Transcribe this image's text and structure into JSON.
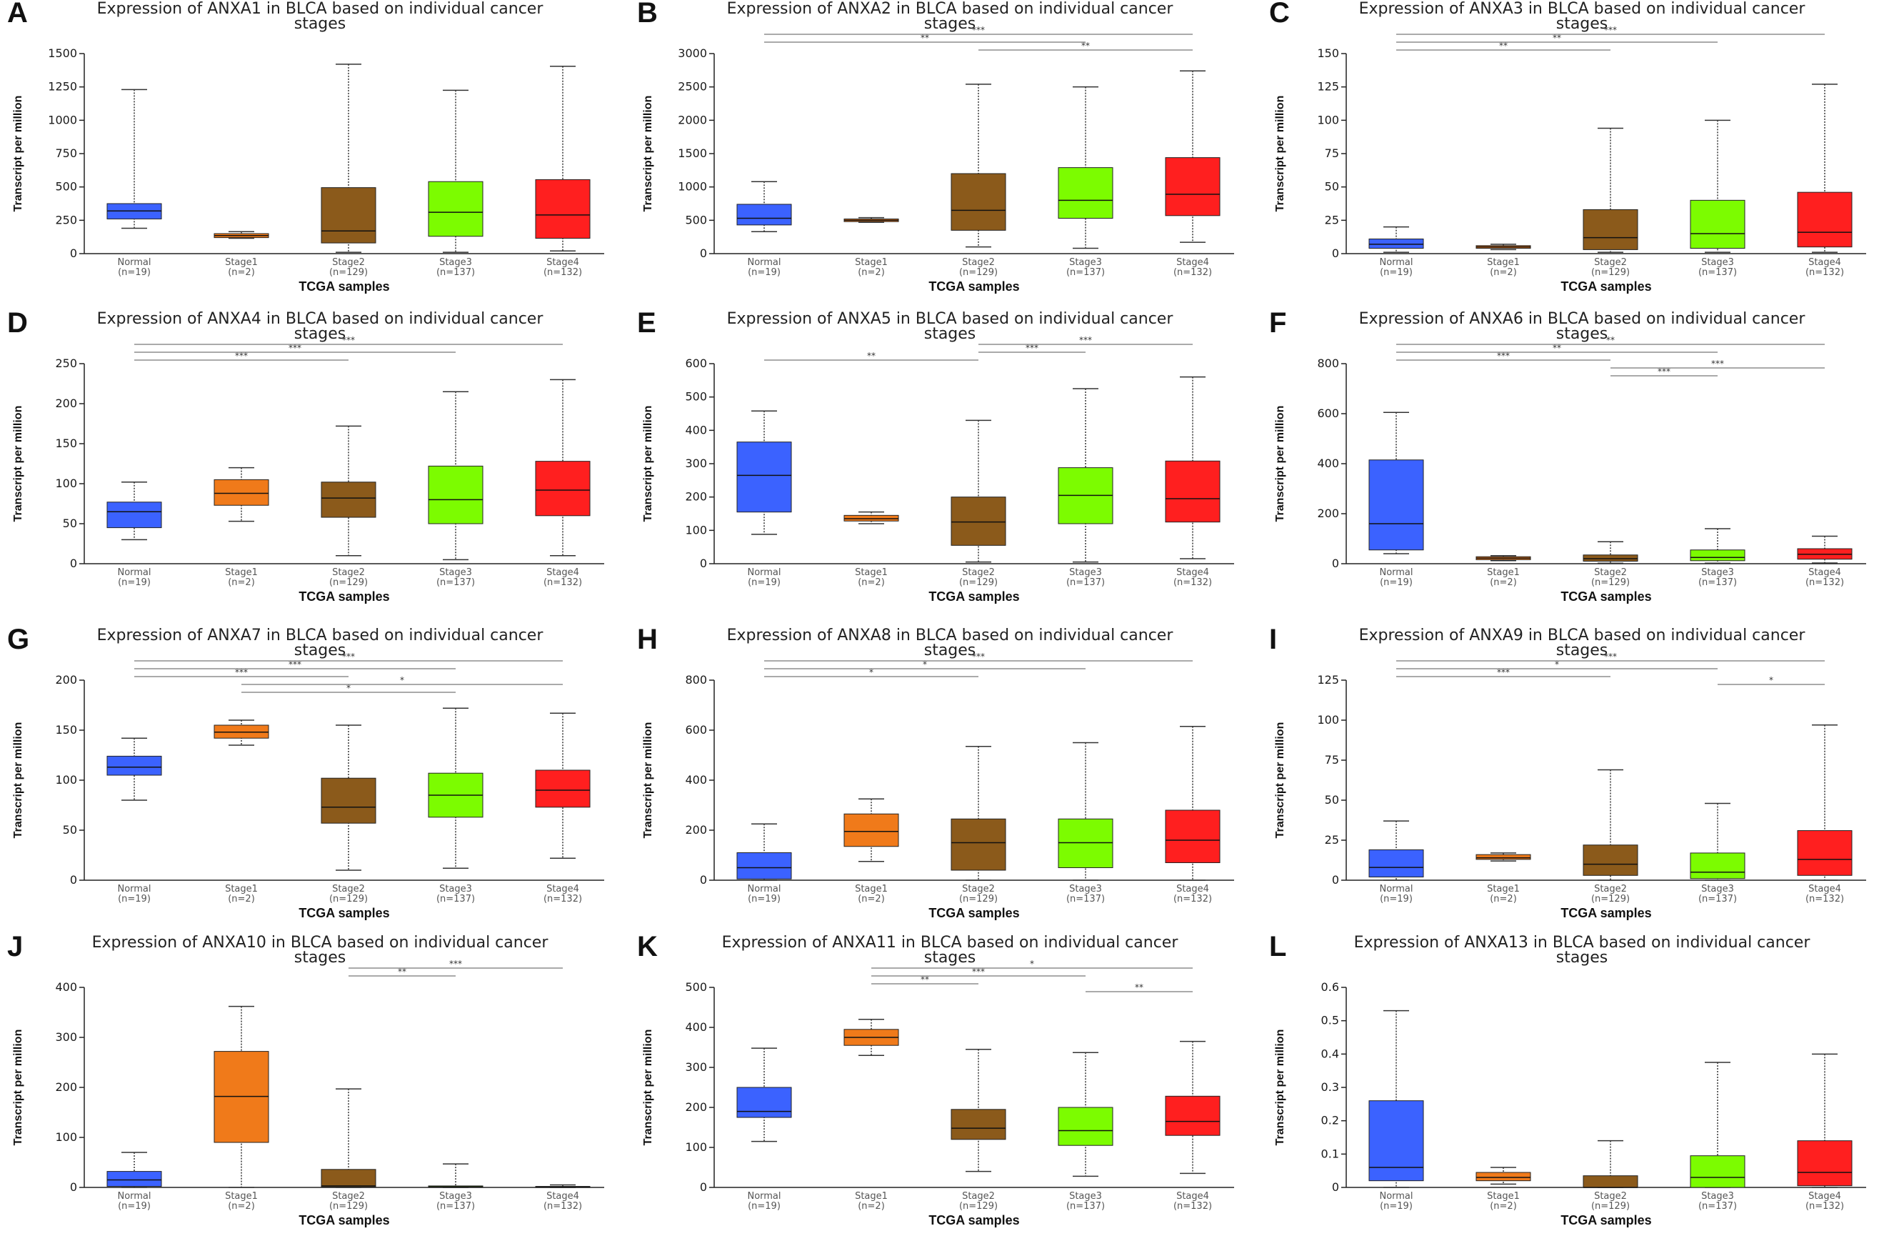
{
  "figure": {
    "xlabel": "TCGA samples",
    "ylabel": "Transcript per million",
    "categories": [
      "Normal",
      "Stage1",
      "Stage2",
      "Stage3",
      "Stage4"
    ],
    "sample_sizes": [
      "(n=19)",
      "(n=2)",
      "(n=129)",
      "(n=137)",
      "(n=132)"
    ],
    "colors": [
      "#3b62ff",
      "#f07a1a",
      "#8b5a1b",
      "#7cfc00",
      "#ff1f1f"
    ]
  },
  "chart_data": [
    {
      "type": "box",
      "letter": "A",
      "title_line1": "Expression of ANXA1 in BLCA based on individual cancer",
      "title_line2": "stages",
      "ylim": [
        0,
        1500
      ],
      "yticks": [
        0,
        250,
        500,
        750,
        1000,
        1250,
        1500
      ],
      "yticklabels": [
        "0",
        "250",
        "500",
        "750",
        "1000",
        "1250",
        "1500"
      ],
      "boxes": [
        {
          "min": 190,
          "q1": 260,
          "median": 320,
          "q3": 375,
          "max": 1230
        },
        {
          "min": 115,
          "q1": 120,
          "median": 135,
          "q3": 150,
          "max": 165
        },
        {
          "min": 10,
          "q1": 80,
          "median": 170,
          "q3": 495,
          "max": 1420
        },
        {
          "min": 10,
          "q1": 130,
          "median": 310,
          "q3": 540,
          "max": 1225
        },
        {
          "min": 20,
          "q1": 115,
          "median": 290,
          "q3": 555,
          "max": 1405
        }
      ],
      "significance": []
    },
    {
      "type": "box",
      "letter": "B",
      "title_line1": "Expression of ANXA2 in BLCA based on individual cancer",
      "title_line2": "stages",
      "ylim": [
        0,
        3000
      ],
      "yticks": [
        0,
        500,
        1000,
        1500,
        2000,
        2500,
        3000
      ],
      "yticklabels": [
        "0",
        "500",
        "1000",
        "1500",
        "2000",
        "2500",
        "3000"
      ],
      "boxes": [
        {
          "min": 330,
          "q1": 430,
          "median": 530,
          "q3": 740,
          "max": 1080
        },
        {
          "min": 470,
          "q1": 480,
          "median": 500,
          "q3": 520,
          "max": 540
        },
        {
          "min": 100,
          "q1": 350,
          "median": 650,
          "q3": 1200,
          "max": 2540
        },
        {
          "min": 80,
          "q1": 530,
          "median": 800,
          "q3": 1290,
          "max": 2500
        },
        {
          "min": 170,
          "q1": 570,
          "median": 890,
          "q3": 1440,
          "max": 2740
        }
      ],
      "significance": [
        {
          "from": 0,
          "to": 4,
          "label": "***"
        },
        {
          "from": 0,
          "to": 3,
          "label": "**"
        },
        {
          "from": 2,
          "to": 4,
          "label": "**"
        }
      ]
    },
    {
      "type": "box",
      "letter": "C",
      "title_line1": "Expression of ANXA3 in BLCA based on individual cancer",
      "title_line2": "stages",
      "ylim": [
        0,
        150
      ],
      "yticks": [
        0,
        25,
        50,
        75,
        100,
        125,
        150
      ],
      "yticklabels": [
        "0",
        "25",
        "50",
        "75",
        "100",
        "125",
        "150"
      ],
      "boxes": [
        {
          "min": 1,
          "q1": 4,
          "median": 7,
          "q3": 11,
          "max": 20
        },
        {
          "min": 3,
          "q1": 4,
          "median": 5,
          "q3": 6,
          "max": 7
        },
        {
          "min": 1,
          "q1": 3,
          "median": 12,
          "q3": 33,
          "max": 94
        },
        {
          "min": 1,
          "q1": 4,
          "median": 15,
          "q3": 40,
          "max": 100
        },
        {
          "min": 1,
          "q1": 5,
          "median": 16,
          "q3": 46,
          "max": 127
        }
      ],
      "significance": [
        {
          "from": 0,
          "to": 4,
          "label": "***"
        },
        {
          "from": 0,
          "to": 3,
          "label": "**"
        },
        {
          "from": 0,
          "to": 2,
          "label": "**"
        }
      ]
    },
    {
      "type": "box",
      "letter": "D",
      "title_line1": "Expression of ANXA4 in BLCA based on individual cancer",
      "title_line2": "stages",
      "ylim": [
        0,
        250
      ],
      "yticks": [
        0,
        50,
        100,
        150,
        200,
        250
      ],
      "yticklabels": [
        "0",
        "50",
        "100",
        "150",
        "200",
        "250"
      ],
      "boxes": [
        {
          "min": 30,
          "q1": 45,
          "median": 65,
          "q3": 77,
          "max": 102
        },
        {
          "min": 53,
          "q1": 73,
          "median": 88,
          "q3": 105,
          "max": 120
        },
        {
          "min": 10,
          "q1": 58,
          "median": 82,
          "q3": 102,
          "max": 172
        },
        {
          "min": 5,
          "q1": 50,
          "median": 80,
          "q3": 122,
          "max": 215
        },
        {
          "min": 10,
          "q1": 60,
          "median": 92,
          "q3": 128,
          "max": 230
        }
      ],
      "significance": [
        {
          "from": 0,
          "to": 4,
          "label": "***"
        },
        {
          "from": 0,
          "to": 3,
          "label": "***"
        },
        {
          "from": 0,
          "to": 2,
          "label": "***"
        }
      ]
    },
    {
      "type": "box",
      "letter": "E",
      "title_line1": "Expression of ANXA5 in BLCA based on individual cancer",
      "title_line2": "stages",
      "ylim": [
        0,
        600
      ],
      "yticks": [
        0,
        100,
        200,
        300,
        400,
        500,
        600
      ],
      "yticklabels": [
        "0",
        "100",
        "200",
        "300",
        "400",
        "500",
        "600"
      ],
      "boxes": [
        {
          "min": 88,
          "q1": 155,
          "median": 265,
          "q3": 365,
          "max": 458
        },
        {
          "min": 120,
          "q1": 128,
          "median": 135,
          "q3": 145,
          "max": 155
        },
        {
          "min": 5,
          "q1": 55,
          "median": 125,
          "q3": 200,
          "max": 430
        },
        {
          "min": 5,
          "q1": 120,
          "median": 205,
          "q3": 288,
          "max": 525
        },
        {
          "min": 15,
          "q1": 125,
          "median": 195,
          "q3": 308,
          "max": 560
        }
      ],
      "significance": [
        {
          "from": 2,
          "to": 4,
          "label": "***"
        },
        {
          "from": 2,
          "to": 3,
          "label": "***"
        },
        {
          "from": 0,
          "to": 2,
          "label": "**"
        }
      ]
    },
    {
      "type": "box",
      "letter": "F",
      "title_line1": "Expression of ANXA6 in BLCA based on individual cancer",
      "title_line2": "stages",
      "ylim": [
        0,
        800
      ],
      "yticks": [
        0,
        200,
        400,
        600,
        800
      ],
      "yticklabels": [
        "0",
        "200",
        "400",
        "600",
        "800"
      ],
      "boxes": [
        {
          "min": 40,
          "q1": 55,
          "median": 160,
          "q3": 415,
          "max": 605
        },
        {
          "min": 12,
          "q1": 16,
          "median": 22,
          "q3": 28,
          "max": 32
        },
        {
          "min": 2,
          "q1": 10,
          "median": 20,
          "q3": 35,
          "max": 88
        },
        {
          "min": 2,
          "q1": 12,
          "median": 25,
          "q3": 55,
          "max": 140
        },
        {
          "min": 3,
          "q1": 18,
          "median": 38,
          "q3": 60,
          "max": 110
        }
      ],
      "significance": [
        {
          "from": 0,
          "to": 4,
          "label": "**"
        },
        {
          "from": 0,
          "to": 3,
          "label": "**"
        },
        {
          "from": 0,
          "to": 2,
          "label": "***"
        },
        {
          "from": 2,
          "to": 4,
          "label": "***"
        },
        {
          "from": 2,
          "to": 3,
          "label": "***"
        }
      ]
    },
    {
      "type": "box",
      "letter": "G",
      "title_line1": "Expression of ANXA7 in BLCA based on individual cancer",
      "title_line2": "stages",
      "ylim": [
        0,
        200
      ],
      "yticks": [
        0,
        50,
        100,
        150,
        200
      ],
      "yticklabels": [
        "0",
        "50",
        "100",
        "150",
        "200"
      ],
      "boxes": [
        {
          "min": 80,
          "q1": 105,
          "median": 113,
          "q3": 124,
          "max": 142
        },
        {
          "min": 135,
          "q1": 142,
          "median": 148,
          "q3": 155,
          "max": 160
        },
        {
          "min": 10,
          "q1": 57,
          "median": 73,
          "q3": 102,
          "max": 155
        },
        {
          "min": 12,
          "q1": 63,
          "median": 85,
          "q3": 107,
          "max": 172
        },
        {
          "min": 22,
          "q1": 73,
          "median": 90,
          "q3": 110,
          "max": 167
        }
      ],
      "significance": [
        {
          "from": 0,
          "to": 4,
          "label": "***"
        },
        {
          "from": 0,
          "to": 3,
          "label": "***"
        },
        {
          "from": 0,
          "to": 2,
          "label": "***"
        },
        {
          "from": 1,
          "to": 4,
          "label": "*"
        },
        {
          "from": 1,
          "to": 3,
          "label": "*"
        }
      ]
    },
    {
      "type": "box",
      "letter": "H",
      "title_line1": "Expression of ANXA8 in BLCA based on individual cancer",
      "title_line2": "stages",
      "ylim": [
        0,
        800
      ],
      "yticks": [
        0,
        200,
        400,
        600,
        800
      ],
      "yticklabels": [
        "0",
        "200",
        "400",
        "600",
        "800"
      ],
      "boxes": [
        {
          "min": 0,
          "q1": 5,
          "median": 50,
          "q3": 110,
          "max": 225
        },
        {
          "min": 75,
          "q1": 135,
          "median": 195,
          "q3": 265,
          "max": 325
        },
        {
          "min": 0,
          "q1": 40,
          "median": 150,
          "q3": 245,
          "max": 535
        },
        {
          "min": 0,
          "q1": 50,
          "median": 150,
          "q3": 245,
          "max": 550
        },
        {
          "min": 0,
          "q1": 70,
          "median": 160,
          "q3": 280,
          "max": 615
        }
      ],
      "significance": [
        {
          "from": 0,
          "to": 4,
          "label": "***"
        },
        {
          "from": 0,
          "to": 3,
          "label": "*"
        },
        {
          "from": 0,
          "to": 2,
          "label": "*"
        }
      ]
    },
    {
      "type": "box",
      "letter": "I",
      "title_line1": "Expression of ANXA9 in BLCA based on individual cancer",
      "title_line2": "stages",
      "ylim": [
        0,
        125
      ],
      "yticks": [
        0,
        25,
        50,
        75,
        100,
        125
      ],
      "yticklabels": [
        "0",
        "25",
        "50",
        "75",
        "100",
        "125"
      ],
      "boxes": [
        {
          "min": 0,
          "q1": 2,
          "median": 8,
          "q3": 19,
          "max": 37
        },
        {
          "min": 12,
          "q1": 13,
          "median": 14,
          "q3": 16,
          "max": 17
        },
        {
          "min": 0,
          "q1": 3,
          "median": 10,
          "q3": 22,
          "max": 69
        },
        {
          "min": 0,
          "q1": 1,
          "median": 5,
          "q3": 17,
          "max": 48
        },
        {
          "min": 0,
          "q1": 3,
          "median": 13,
          "q3": 31,
          "max": 97
        }
      ],
      "significance": [
        {
          "from": 0,
          "to": 4,
          "label": "***"
        },
        {
          "from": 0,
          "to": 3,
          "label": "*"
        },
        {
          "from": 0,
          "to": 2,
          "label": "***"
        },
        {
          "from": 3,
          "to": 4,
          "label": "*"
        }
      ]
    },
    {
      "type": "box",
      "letter": "J",
      "title_line1": "Expression of ANXA10 in BLCA based on individual cancer",
      "title_line2": "stages",
      "ylim": [
        0,
        400
      ],
      "yticks": [
        0,
        100,
        200,
        300,
        400
      ],
      "yticklabels": [
        "0",
        "100",
        "200",
        "300",
        "400"
      ],
      "boxes": [
        {
          "min": 0,
          "q1": 2,
          "median": 15,
          "q3": 32,
          "max": 70
        },
        {
          "min": 0,
          "q1": 90,
          "median": 182,
          "q3": 272,
          "max": 362
        },
        {
          "min": 0,
          "q1": 1,
          "median": 3,
          "q3": 36,
          "max": 197
        },
        {
          "min": 0,
          "q1": 0,
          "median": 1,
          "q3": 3,
          "max": 47
        },
        {
          "min": 0,
          "q1": 0,
          "median": 1,
          "q3": 2,
          "max": 5
        }
      ],
      "significance": [
        {
          "from": 2,
          "to": 4,
          "label": "***"
        },
        {
          "from": 2,
          "to": 3,
          "label": "**"
        }
      ]
    },
    {
      "type": "box",
      "letter": "K",
      "title_line1": "Expression of ANXA11 in BLCA based on individual cancer",
      "title_line2": "stages",
      "ylim": [
        0,
        500
      ],
      "yticks": [
        0,
        100,
        200,
        300,
        400,
        500
      ],
      "yticklabels": [
        "0",
        "100",
        "200",
        "300",
        "400",
        "500"
      ],
      "boxes": [
        {
          "min": 115,
          "q1": 175,
          "median": 190,
          "q3": 250,
          "max": 348
        },
        {
          "min": 330,
          "q1": 355,
          "median": 375,
          "q3": 395,
          "max": 420
        },
        {
          "min": 40,
          "q1": 120,
          "median": 148,
          "q3": 195,
          "max": 345
        },
        {
          "min": 28,
          "q1": 105,
          "median": 142,
          "q3": 200,
          "max": 337
        },
        {
          "min": 35,
          "q1": 130,
          "median": 165,
          "q3": 228,
          "max": 365
        }
      ],
      "significance": [
        {
          "from": 1,
          "to": 4,
          "label": "*"
        },
        {
          "from": 1,
          "to": 3,
          "label": "***"
        },
        {
          "from": 1,
          "to": 2,
          "label": "**"
        },
        {
          "from": 3,
          "to": 4,
          "label": "**"
        }
      ]
    },
    {
      "type": "box",
      "letter": "L",
      "title_line1": "Expression of ANXA13 in BLCA based on individual cancer",
      "title_line2": "stages",
      "ylim": [
        0,
        0.6
      ],
      "yticks": [
        0,
        0.1,
        0.2,
        0.3,
        0.4,
        0.5,
        0.6
      ],
      "yticklabels": [
        "0",
        "0.1",
        "0.2",
        "0.3",
        "0.4",
        "0.5",
        "0.6"
      ],
      "boxes": [
        {
          "min": 0,
          "q1": 0.02,
          "median": 0.06,
          "q3": 0.26,
          "max": 0.53
        },
        {
          "min": 0.01,
          "q1": 0.02,
          "median": 0.03,
          "q3": 0.045,
          "max": 0.06
        },
        {
          "min": 0,
          "q1": 0,
          "median": 0,
          "q3": 0.035,
          "max": 0.14
        },
        {
          "min": 0,
          "q1": 0,
          "median": 0.03,
          "q3": 0.095,
          "max": 0.375
        },
        {
          "min": 0,
          "q1": 0.005,
          "median": 0.045,
          "q3": 0.14,
          "max": 0.4
        }
      ],
      "significance": []
    }
  ]
}
